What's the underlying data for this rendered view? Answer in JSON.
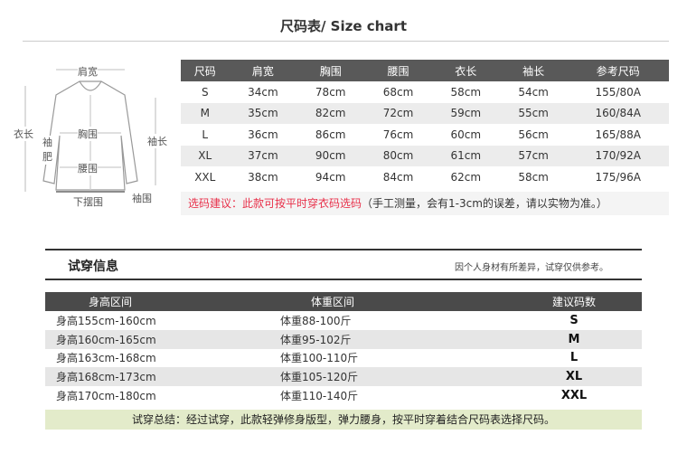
{
  "title": "尺码表/ Size chart",
  "diagram": {
    "labels": {
      "shoulder": "肩宽",
      "length": "衣长",
      "sleeve_width": "袖肥",
      "chest": "胸围",
      "waist": "腰围",
      "sleeve_length": "袖长",
      "hem": "下摆围",
      "cuff": "袖围"
    }
  },
  "size_table": {
    "headers": [
      "尺码",
      "肩宽",
      "胸围",
      "腰围",
      "衣长",
      "袖长",
      "参考尺码"
    ],
    "rows": [
      [
        "S",
        "34cm",
        "78cm",
        "68cm",
        "58cm",
        "54cm",
        "155/80A"
      ],
      [
        "M",
        "35cm",
        "82cm",
        "72cm",
        "59cm",
        "55cm",
        "160/84A"
      ],
      [
        "L",
        "36cm",
        "86cm",
        "76cm",
        "60cm",
        "56cm",
        "165/88A"
      ],
      [
        "XL",
        "37cm",
        "90cm",
        "80cm",
        "61cm",
        "57cm",
        "170/92A"
      ],
      [
        "XXL",
        "38cm",
        "94cm",
        "84cm",
        "62cm",
        "58cm",
        "175/96A"
      ]
    ]
  },
  "note": {
    "highlight": "选码建议：此款可按平时穿衣码选码",
    "rest": "（手工测量，会有1-3cm的误差，请以实物为准。）",
    "highlight_color": "#e8304a"
  },
  "tryon": {
    "title": "试穿信息",
    "disclaimer": "因个人身材有所差异，试穿仅供参考。",
    "headers": [
      "身高区间",
      "体重区间",
      "建议码数"
    ],
    "rows": [
      [
        "身高155cm-160cm",
        "体重88-100斤",
        "S"
      ],
      [
        "身高160cm-165cm",
        "体重95-102斤",
        "M"
      ],
      [
        "身高163cm-168cm",
        "体重100-110斤",
        "L"
      ],
      [
        "身高168cm-173cm",
        "体重105-120斤",
        "XL"
      ],
      [
        "身高170cm-180cm",
        "体重110-140斤",
        "XXL"
      ]
    ],
    "summary": "试穿总结：经过试穿，此款轻弹修身版型，弹力腰身，按平时穿着结合尺码表选择尺码。"
  }
}
